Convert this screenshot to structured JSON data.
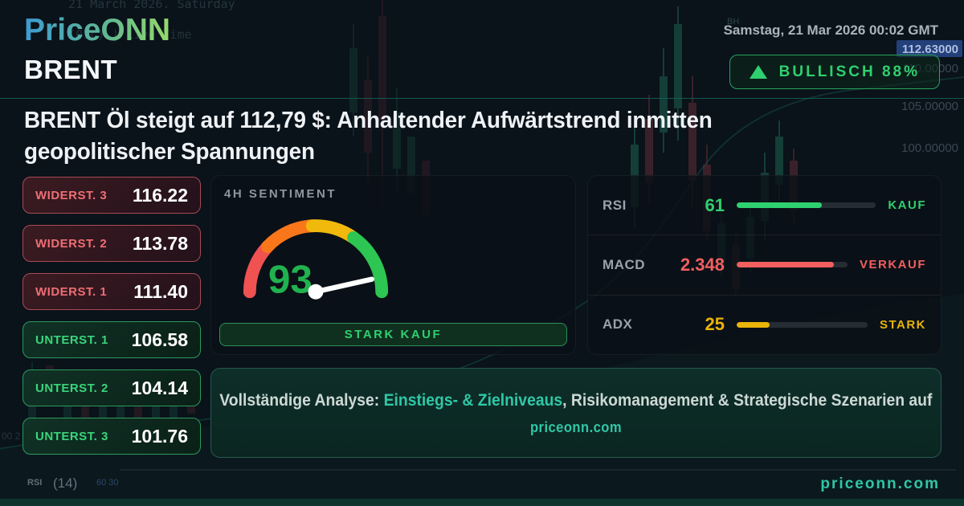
{
  "brand": {
    "name": "PriceONN",
    "domain": "priceonn.com"
  },
  "header": {
    "timestamp": "Samstag, 21 Mar 2026 00:02 GMT",
    "instrument": "BRENT",
    "signal_badge": {
      "icon": "up-triangle",
      "label": "BULLISCH 88%"
    }
  },
  "headline": {
    "line1": "BRENT Öl steigt auf 112,79 $: Anhaltender Aufwärtstrend inmitten",
    "line2": "geopolitischer Spannungen"
  },
  "levels": {
    "resistance": [
      {
        "label": "WIDERST. 3",
        "value": "116.22"
      },
      {
        "label": "WIDERST. 2",
        "value": "113.78"
      },
      {
        "label": "WIDERST. 1",
        "value": "111.40"
      }
    ],
    "support": [
      {
        "label": "UNTERST. 1",
        "value": "106.58"
      },
      {
        "label": "UNTERST. 2",
        "value": "104.14"
      },
      {
        "label": "UNTERST. 3",
        "value": "101.76"
      }
    ]
  },
  "sentiment": {
    "title": "4H SENTIMENT",
    "score": "93",
    "gauge_value": 93,
    "action_label": "STARK KAUF",
    "gauge_colors": {
      "red": "#f05252",
      "orange": "#f9761a",
      "amber": "#f0b90b",
      "green": "#2dc653"
    }
  },
  "indicators": [
    {
      "name": "RSI",
      "value": "61",
      "signal": "KAUF",
      "fill_pct": 61,
      "color": "#2fd06f"
    },
    {
      "name": "MACD",
      "value": "2.348",
      "signal": "VERKAUF",
      "fill_pct": 88,
      "color": "#f25f5f"
    },
    {
      "name": "ADX",
      "value": "25",
      "signal": "STARK",
      "fill_pct": 25,
      "color": "#eab308"
    }
  ],
  "footer_banner": {
    "prefix": "Vollständige Analyse: ",
    "highlight": "Einstiegs- & Zielniveaus",
    "suffix": ", Risikomanagement & Strategische Szenarien auf",
    "domain": "priceonn.com"
  },
  "footer": {
    "website": "priceonn.com"
  },
  "background_chart": {
    "price_tag": "112.63000",
    "price_labels": [
      "110.00000",
      "105.00000",
      "100.00000"
    ],
    "indicator_pane_label": "RSI",
    "indicator_pane_period": "(14)",
    "indicator_pane_levels": "60 30",
    "top_note_line1": "21 March 2026. Saturday",
    "top_note_line2": "(01c) | Live Time",
    "fragments": {
      "bh": "BH",
      "left_axis": "00 2"
    }
  },
  "colors": {
    "accent_green": "#2fd06f",
    "accent_red": "#f25f5f",
    "accent_amber": "#eab308",
    "accent_teal": "#2fc7a6",
    "resistance_border": "#a84b55",
    "resistance_label": "#ef6e74",
    "support_border": "#2b9a5c",
    "support_label": "#3bd47c",
    "price_tag_bg": "#24407a"
  }
}
